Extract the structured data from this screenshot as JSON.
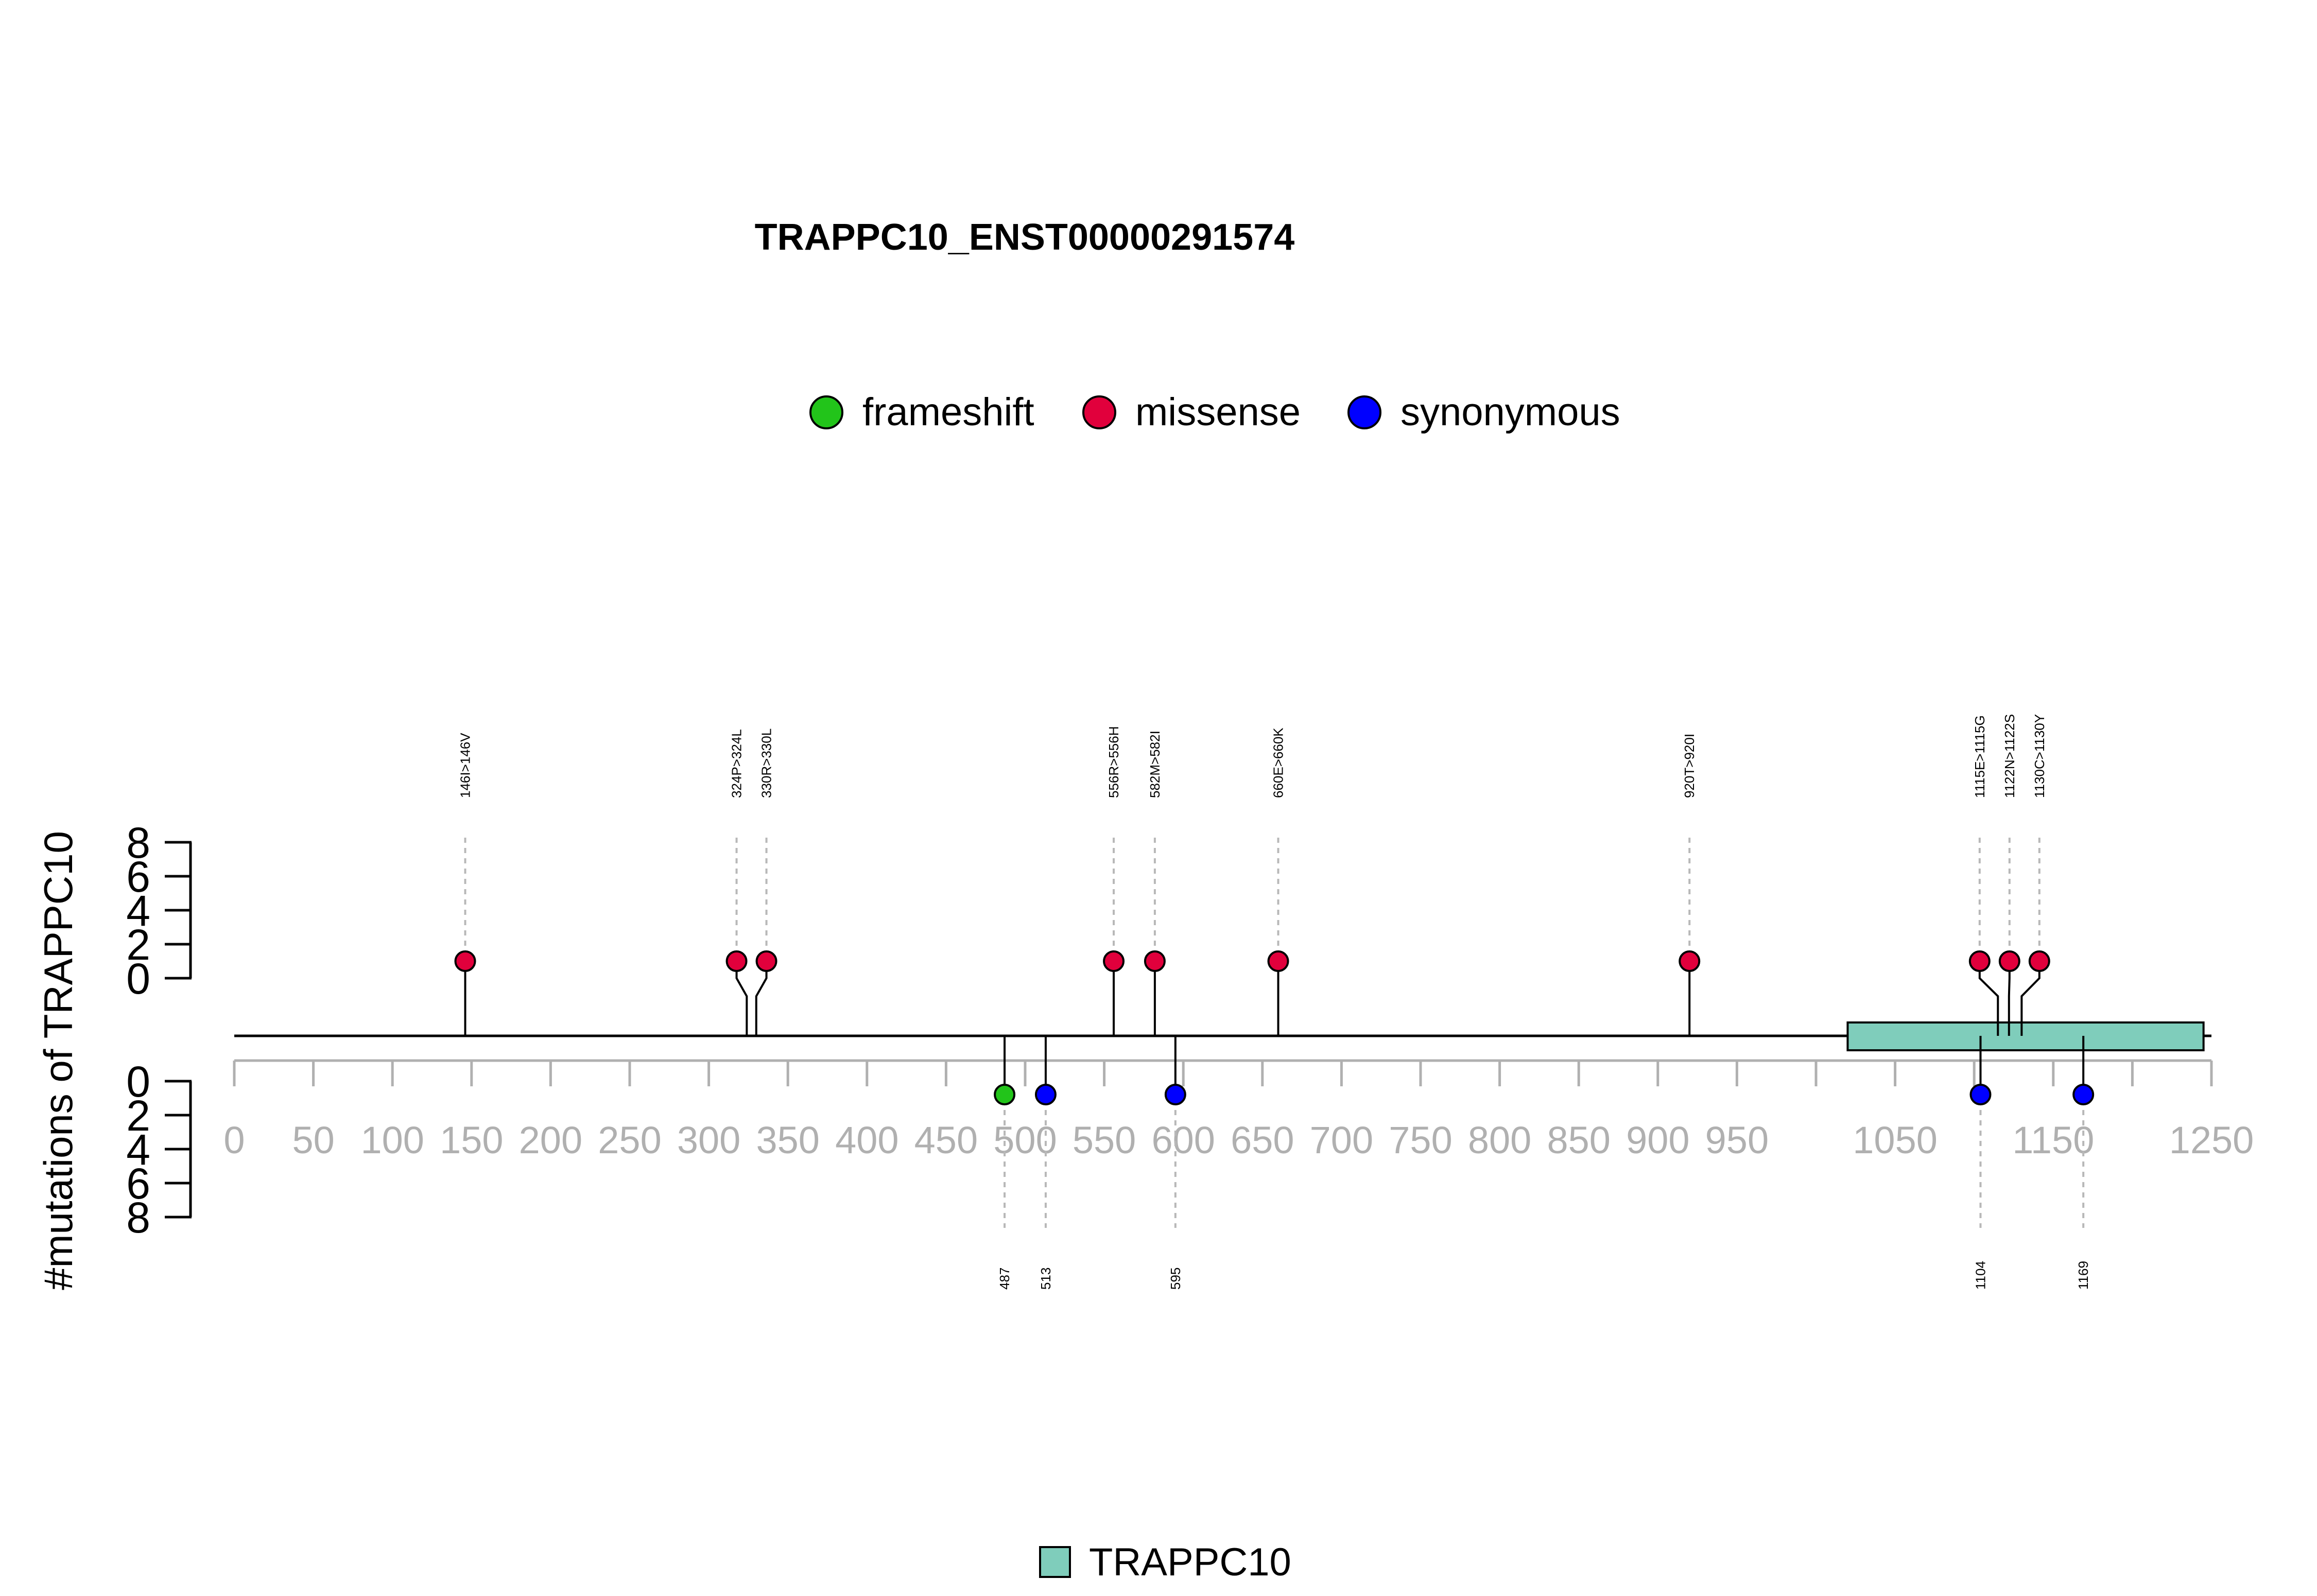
{
  "chart_data": {
    "type": "lollipop",
    "title": "TRAPPC10_ENST00000291574",
    "ylabel": "#mutations of TRAPPC10",
    "xlim": [
      0,
      1250
    ],
    "x_ticks": [
      0,
      50,
      100,
      150,
      200,
      250,
      300,
      350,
      400,
      450,
      500,
      550,
      600,
      650,
      700,
      750,
      800,
      850,
      900,
      950,
      1050,
      1150,
      1250
    ],
    "x_minor_ticks": [
      0,
      50,
      100,
      150,
      200,
      250,
      300,
      350,
      400,
      450,
      500,
      550,
      600,
      650,
      700,
      750,
      800,
      850,
      900,
      950,
      1000,
      1050,
      1100,
      1150,
      1200,
      1250
    ],
    "y_ticks_top": [
      0,
      2,
      4,
      6,
      8
    ],
    "y_ticks_bottom": [
      0,
      2,
      4,
      6,
      8
    ],
    "legend": [
      {
        "name": "frameshift",
        "color": "#22C41A"
      },
      {
        "name": "missense",
        "color": "#E1003C"
      },
      {
        "name": "synonymous",
        "color": "#0000FF"
      }
    ],
    "top_mutations": [
      {
        "position": 146,
        "count": 1,
        "type": "missense",
        "label": "146I>146V"
      },
      {
        "position": 324,
        "count": 1,
        "type": "missense",
        "label": "324P>324L"
      },
      {
        "position": 330,
        "count": 1,
        "type": "missense",
        "label": "330R>330L"
      },
      {
        "position": 556,
        "count": 1,
        "type": "missense",
        "label": "556R>556H"
      },
      {
        "position": 582,
        "count": 1,
        "type": "missense",
        "label": "582M>582I"
      },
      {
        "position": 660,
        "count": 1,
        "type": "missense",
        "label": "660E>660K"
      },
      {
        "position": 920,
        "count": 1,
        "type": "missense",
        "label": "920T>920I"
      },
      {
        "position": 1115,
        "count": 1,
        "type": "missense",
        "label": "1115E>1115G"
      },
      {
        "position": 1122,
        "count": 1,
        "type": "missense",
        "label": "1122N>1122S"
      },
      {
        "position": 1130,
        "count": 1,
        "type": "missense",
        "label": "1130C>1130Y"
      }
    ],
    "bottom_mutations": [
      {
        "position": 487,
        "count": 1,
        "type": "frameshift",
        "label": "487"
      },
      {
        "position": 513,
        "count": 1,
        "type": "synonymous",
        "label": "513"
      },
      {
        "position": 595,
        "count": 1,
        "type": "synonymous",
        "label": "595"
      },
      {
        "position": 1104,
        "count": 1,
        "type": "synonymous",
        "label": "1104"
      },
      {
        "position": 1169,
        "count": 1,
        "type": "synonymous",
        "label": "1169"
      }
    ],
    "domains": [
      {
        "name": "TRAPPC10",
        "start": 1020,
        "end": 1245,
        "color": "#7FCDBB"
      }
    ],
    "domain_legend": [
      {
        "name": "TRAPPC10",
        "color": "#7FCDBB"
      }
    ]
  }
}
